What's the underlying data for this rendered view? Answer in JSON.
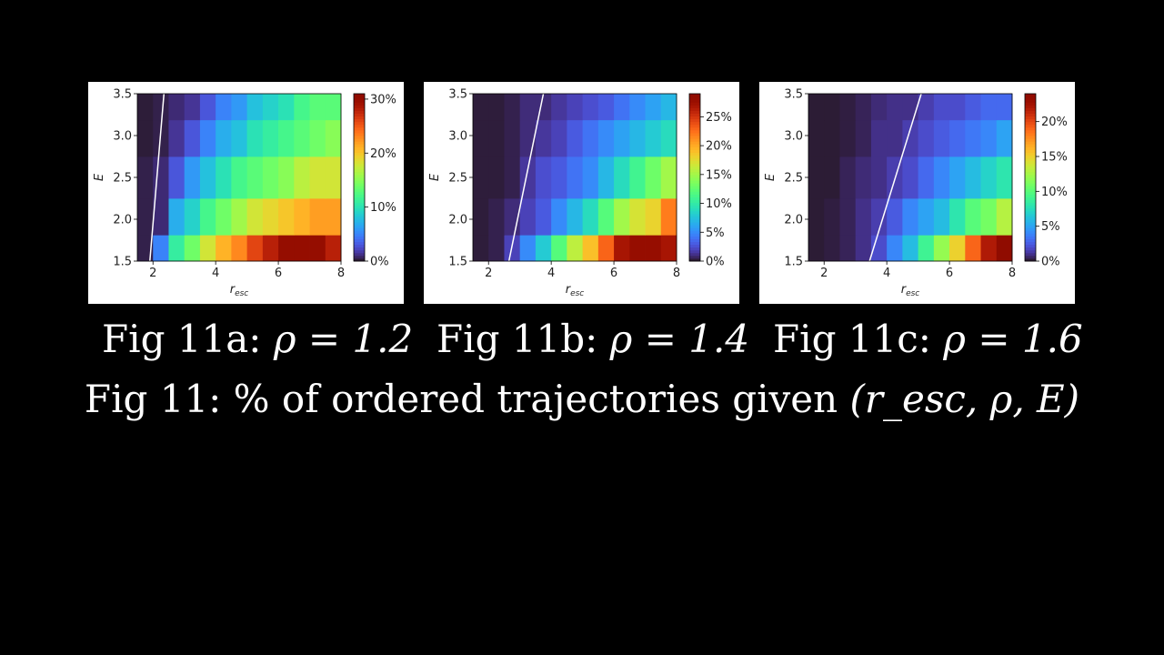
{
  "caption": {
    "prefix": "Fig 11: % of ordered trajectories given ",
    "formula": "(r_esc, ρ, E)"
  },
  "charts": [
    {
      "id": "11a",
      "caption_label": "Fig 11a:",
      "caption_formula": "ρ = 1.2",
      "chart_data": {
        "type": "heatmap",
        "title": "",
        "xlabel": "r_esc",
        "ylabel": "E",
        "xlim": [
          1.5,
          8
        ],
        "ylim": [
          1.5,
          3.5
        ],
        "x_ticks": [
          "2",
          "4",
          "6",
          "8"
        ],
        "y_ticks": [
          "1.5",
          "2.0",
          "2.5",
          "3.0",
          "3.5"
        ],
        "colorbar_ticks": [
          "0%",
          "10%",
          "20%",
          "30%"
        ],
        "colorbar_max": 31,
        "colormap": "turbo",
        "x_centers": [
          1.75,
          2.25,
          2.75,
          3.25,
          3.75,
          4.25,
          4.75,
          5.25,
          5.75,
          6.25,
          6.75,
          7.25,
          7.75
        ],
        "y_centers": [
          1.625,
          2.0,
          2.5,
          3.0,
          3.375
        ],
        "values": [
          [
            0.5,
            5,
            11,
            14,
            18,
            21,
            23,
            26,
            28,
            30,
            30,
            30,
            28
          ],
          [
            0.5,
            1,
            7,
            9,
            12,
            14,
            16,
            18,
            19,
            20,
            21,
            22,
            22
          ],
          [
            0.5,
            1,
            3,
            6,
            8,
            10,
            12,
            13,
            14,
            15,
            17,
            18,
            18
          ],
          [
            0.3,
            0.5,
            1.5,
            3,
            5,
            7,
            8,
            10,
            11,
            12,
            13,
            14,
            15
          ],
          [
            0.3,
            0.5,
            1,
            1.5,
            3,
            5,
            6,
            8,
            9,
            10,
            12,
            13,
            13
          ]
        ],
        "boundary_line": {
          "x": [
            1.9,
            2.35
          ],
          "y": [
            1.5,
            3.5
          ]
        }
      }
    },
    {
      "id": "11b",
      "caption_label": "Fig 11b:",
      "caption_formula": "ρ = 1.4",
      "chart_data": {
        "type": "heatmap",
        "title": "",
        "xlabel": "r_esc",
        "ylabel": "E",
        "xlim": [
          1.5,
          8
        ],
        "ylim": [
          1.5,
          3.5
        ],
        "x_ticks": [
          "2",
          "4",
          "6",
          "8"
        ],
        "y_ticks": [
          "1.5",
          "2.0",
          "2.5",
          "3.0",
          "3.5"
        ],
        "colorbar_ticks": [
          "0%",
          "5%",
          "10%",
          "15%",
          "20%",
          "25%"
        ],
        "colorbar_max": 29,
        "colormap": "turbo",
        "x_centers": [
          1.75,
          2.25,
          2.75,
          3.25,
          3.75,
          4.25,
          4.75,
          5.25,
          5.75,
          6.25,
          6.75,
          7.25,
          7.75
        ],
        "y_centers": [
          1.625,
          2.0,
          2.5,
          3.0,
          3.375
        ],
        "values": [
          [
            0.3,
            0.5,
            2,
            5,
            8,
            12,
            16,
            19,
            23,
            27,
            28,
            28,
            27
          ],
          [
            0.3,
            0.5,
            1,
            2,
            3,
            5,
            7,
            9,
            12,
            15,
            17,
            18,
            22
          ],
          [
            0.3,
            0.3,
            0.5,
            1.5,
            2.5,
            3,
            4,
            5,
            7,
            9,
            11,
            13,
            15
          ],
          [
            0.3,
            0.3,
            0.5,
            1,
            1.5,
            2,
            3,
            4,
            5,
            6,
            7,
            8,
            9
          ],
          [
            0.3,
            0.3,
            0.5,
            1,
            1,
            1.5,
            2,
            2.5,
            3,
            4,
            5,
            6,
            7
          ]
        ],
        "boundary_line": {
          "x": [
            2.65,
            3.75
          ],
          "y": [
            1.5,
            3.5
          ]
        }
      }
    },
    {
      "id": "11c",
      "caption_label": "Fig 11c:",
      "caption_formula": "ρ = 1.6",
      "chart_data": {
        "type": "heatmap",
        "title": "",
        "xlabel": "r_esc",
        "ylabel": "E",
        "xlim": [
          1.5,
          8
        ],
        "ylim": [
          1.5,
          3.5
        ],
        "x_ticks": [
          "2",
          "4",
          "6",
          "8"
        ],
        "y_ticks": [
          "1.5",
          "2.0",
          "2.5",
          "3.0",
          "3.5"
        ],
        "colorbar_ticks": [
          "0%",
          "5%",
          "10%",
          "15%",
          "20%"
        ],
        "colorbar_max": 24,
        "colormap": "turbo",
        "x_centers": [
          1.75,
          2.25,
          2.75,
          3.25,
          3.75,
          4.25,
          4.75,
          5.25,
          5.75,
          6.25,
          6.75,
          7.25,
          7.75
        ],
        "y_centers": [
          1.625,
          2.0,
          2.5,
          3.0,
          3.375
        ],
        "values": [
          [
            0.2,
            0.3,
            0.5,
            1,
            2,
            4,
            6,
            9,
            12,
            15,
            19,
            22,
            24
          ],
          [
            0.2,
            0.3,
            0.5,
            1,
            1.5,
            2.5,
            4,
            5,
            6,
            8,
            10,
            11,
            13
          ],
          [
            0.2,
            0.2,
            0.5,
            0.8,
            1,
            1.5,
            2,
            3,
            4,
            5,
            6,
            7,
            8
          ],
          [
            0.2,
            0.2,
            0.3,
            0.5,
            1,
            1,
            1.5,
            2,
            2.5,
            3,
            3.5,
            4,
            5
          ],
          [
            0.2,
            0.2,
            0.3,
            0.5,
            0.8,
            1,
            1,
            1.5,
            2,
            2,
            2.5,
            3,
            3
          ]
        ],
        "boundary_line": {
          "x": [
            3.45,
            5.1
          ],
          "y": [
            1.5,
            3.5
          ]
        }
      }
    }
  ]
}
